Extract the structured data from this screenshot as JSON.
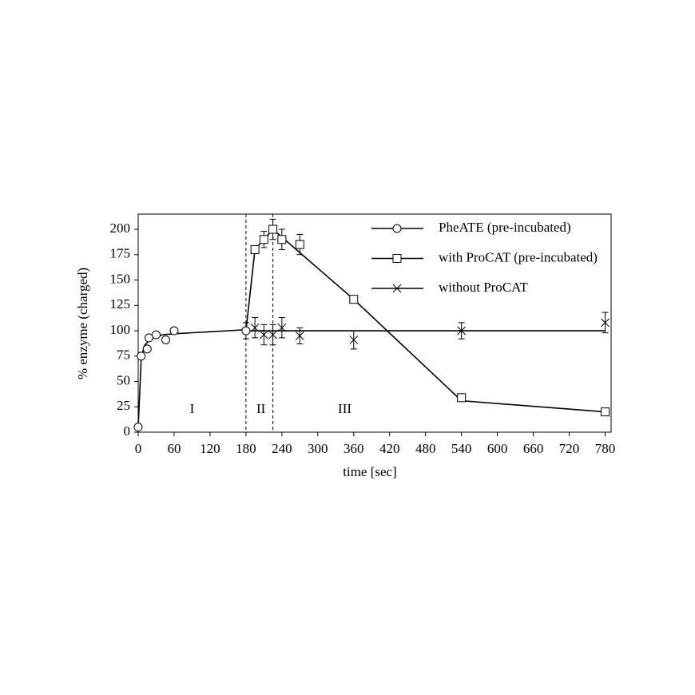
{
  "chart_data": {
    "type": "line",
    "xlabel": "time [sec]",
    "ylabel": "% enzyme (charged)",
    "xlim": [
      0,
      790
    ],
    "ylim": [
      0,
      215
    ],
    "xticks": [
      0,
      60,
      120,
      180,
      240,
      300,
      360,
      420,
      480,
      540,
      600,
      660,
      720,
      780
    ],
    "yticks": [
      0,
      25,
      50,
      75,
      100,
      125,
      150,
      175,
      200
    ],
    "vlines": [
      180,
      225
    ],
    "annotations": [
      {
        "text": "I",
        "x": 90,
        "y": 22
      },
      {
        "text": "II",
        "x": 205,
        "y": 22
      },
      {
        "text": "III",
        "x": 345,
        "y": 22
      }
    ],
    "legend": "upper right",
    "series": [
      {
        "name": "PheATE (pre-incubated)",
        "marker": "circle",
        "color": "#000000",
        "x": [
          0,
          5,
          15,
          18,
          30,
          46,
          60,
          180
        ],
        "values": [
          5,
          75,
          82,
          93,
          96,
          91,
          100,
          100
        ],
        "errors": [
          null,
          null,
          null,
          null,
          null,
          null,
          null,
          8
        ],
        "fit": {
          "x": [
            0,
            5,
            10,
            20,
            40,
            60,
            180
          ],
          "y": [
            5,
            72,
            85,
            92,
            96,
            97,
            101
          ]
        }
      },
      {
        "name": "with ProCAT (pre-incubated)",
        "marker": "square",
        "color": "#000000",
        "x": [
          195,
          210,
          225,
          240,
          270,
          360,
          540,
          780
        ],
        "values": [
          180,
          190,
          200,
          190,
          185,
          131,
          34,
          20
        ],
        "errors": [
          null,
          8,
          10,
          10,
          10,
          null,
          null,
          null
        ],
        "fit": {
          "x": [
            180,
            195,
            210,
            225,
            360,
            540,
            780
          ],
          "y": [
            100,
            180,
            190,
            200,
            131,
            31,
            20
          ]
        }
      },
      {
        "name": "without ProCAT",
        "marker": "cross",
        "color": "#000000",
        "x": [
          195,
          210,
          225,
          240,
          270,
          360,
          540,
          780
        ],
        "values": [
          103,
          96,
          96,
          103,
          95,
          91,
          100,
          108
        ],
        "errors": [
          10,
          10,
          10,
          10,
          8,
          9,
          8,
          10
        ],
        "fit": {
          "x": [
            180,
            780
          ],
          "y": [
            100,
            100
          ]
        }
      }
    ]
  }
}
